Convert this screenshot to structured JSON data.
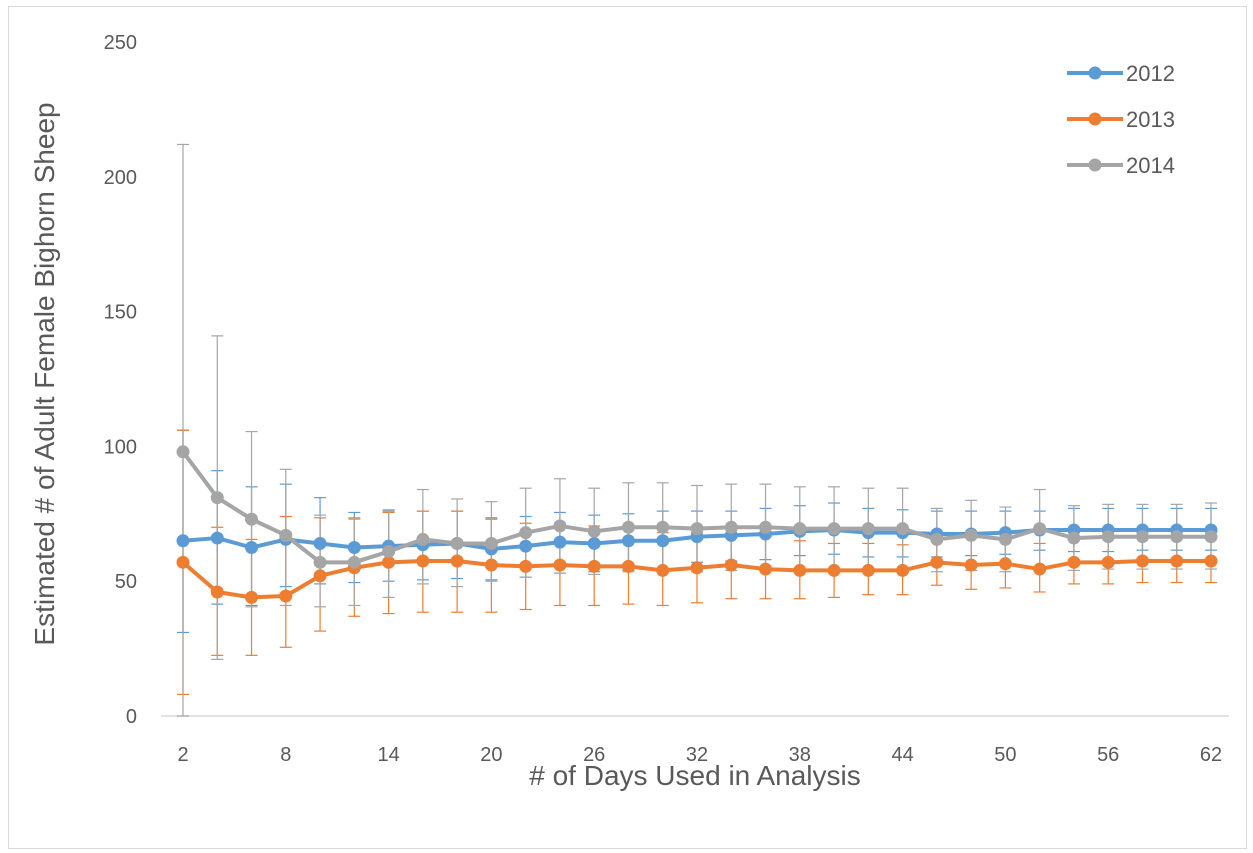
{
  "chart_data": {
    "type": "line",
    "title": "",
    "xlabel": "# of Days Used in Analysis",
    "ylabel": "Estimated # of Adult Female Bighorn Sheep",
    "x": [
      2,
      4,
      6,
      8,
      10,
      12,
      14,
      16,
      18,
      20,
      22,
      24,
      26,
      28,
      30,
      32,
      34,
      36,
      38,
      40,
      42,
      44,
      46,
      48,
      50,
      52,
      54,
      56,
      58,
      60,
      62
    ],
    "x_ticks": [
      2,
      8,
      14,
      20,
      26,
      32,
      38,
      44,
      50,
      56,
      62
    ],
    "y_ticks": [
      0,
      50,
      100,
      150,
      200,
      250
    ],
    "ylim": [
      0,
      250
    ],
    "grid": false,
    "legend_position": "top-right",
    "error_bars": true,
    "series": [
      {
        "name": "2012",
        "color": "#5b9bd5",
        "values": [
          65,
          66,
          62.5,
          65.5,
          64,
          62.5,
          63,
          63.5,
          64,
          62,
          63,
          64.5,
          64,
          65,
          65,
          66.5,
          67,
          67.5,
          68.5,
          69,
          68,
          68,
          67.5,
          67.5,
          68,
          69,
          69,
          69,
          69,
          69,
          69
        ],
        "upper": [
          106,
          91,
          85,
          86,
          81,
          75.5,
          76,
          76,
          76,
          73.5,
          74,
          75.5,
          74.5,
          75,
          76,
          76,
          76,
          77,
          78,
          79,
          77,
          76.5,
          76,
          76,
          76,
          76,
          77,
          77,
          77,
          77,
          77
        ],
        "lower": [
          31,
          41.5,
          41,
          48,
          49,
          49.5,
          50,
          50.5,
          51,
          50.5,
          51.5,
          53,
          53.5,
          54,
          54,
          57,
          57.5,
          58,
          59.5,
          60,
          59,
          59,
          59,
          59.5,
          60,
          61.5,
          61,
          61,
          61.5,
          61.5,
          61.5
        ]
      },
      {
        "name": "2013",
        "color": "#ed7d31",
        "values": [
          57,
          46,
          44,
          44.5,
          52,
          55,
          57,
          57.5,
          57.5,
          56,
          55.5,
          56,
          55.5,
          55.5,
          54,
          55,
          56,
          54.5,
          54,
          54,
          54,
          54,
          57,
          56,
          56.5,
          54.5,
          57,
          57,
          57.5,
          57.5,
          57.5
        ],
        "upper": [
          106,
          70,
          65.5,
          74,
          73.5,
          73.5,
          75.5,
          76,
          76,
          73,
          71.5,
          71.5,
          70.5,
          70,
          68,
          68,
          69,
          66.5,
          65,
          64,
          64,
          63.5,
          66,
          66,
          66,
          64,
          66,
          66,
          66.5,
          66.5,
          66
        ],
        "lower": [
          8,
          22.5,
          22.5,
          25.5,
          31.5,
          37,
          38,
          38.5,
          38.5,
          38.5,
          39.5,
          41,
          41,
          41.5,
          41,
          42,
          43.5,
          43.5,
          43.5,
          44,
          45,
          45,
          48.5,
          47,
          47.5,
          46,
          49,
          49,
          49.5,
          49.5,
          49.5
        ]
      },
      {
        "name": "2014",
        "color": "#a5a5a5",
        "values": [
          98,
          81,
          73,
          67,
          57,
          57,
          61,
          65.5,
          64,
          64,
          68,
          70.5,
          68.5,
          70,
          70,
          69.5,
          70,
          70,
          69.5,
          69.5,
          69.5,
          69.5,
          65.5,
          67,
          65.5,
          69.5,
          66,
          66.5,
          66.5,
          66.5,
          66.5
        ],
        "upper": [
          212,
          141,
          105.5,
          91.5,
          74.5,
          73,
          76.5,
          84,
          80.5,
          79.5,
          84.5,
          88,
          84.5,
          86.5,
          86.5,
          85.5,
          86,
          86,
          85,
          85,
          84.5,
          84.5,
          77,
          80,
          77.5,
          84,
          78,
          78.5,
          78.5,
          78.5,
          79
        ],
        "lower": [
          0,
          21,
          40.5,
          41,
          40.5,
          41,
          44,
          49,
          48,
          50,
          51.5,
          53,
          52.5,
          53.5,
          53.5,
          53.5,
          54,
          54,
          54,
          54,
          54.5,
          54.5,
          53.5,
          54,
          53.5,
          55,
          54,
          54.5,
          54.5,
          54.5,
          54.5
        ]
      }
    ]
  }
}
